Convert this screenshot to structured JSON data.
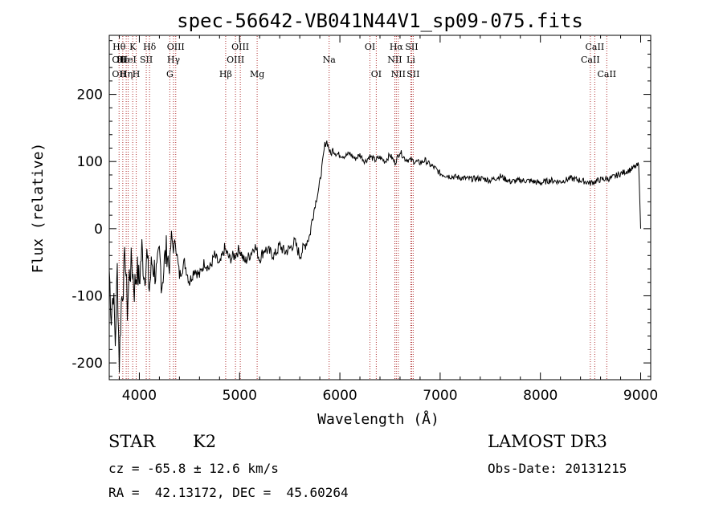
{
  "chart_data": {
    "type": "line",
    "title": "spec-56642-VB041N44V1_sp09-075.fits",
    "xlabel": "Wavelength (Å)",
    "ylabel": "Flux (relative)",
    "xlim": [
      3700,
      9100
    ],
    "ylim": [
      -225,
      288
    ],
    "xticks": [
      4000,
      5000,
      6000,
      7000,
      8000,
      9000
    ],
    "yticks": [
      -200,
      -100,
      0,
      100,
      200
    ],
    "grid": false,
    "series": [
      {
        "name": "spectrum",
        "x": [
          3700,
          3720,
          3740,
          3760,
          3780,
          3800,
          3820,
          3840,
          3860,
          3880,
          3900,
          3925,
          3950,
          3975,
          4000,
          4025,
          4050,
          4075,
          4100,
          4125,
          4150,
          4175,
          4200,
          4225,
          4250,
          4275,
          4300,
          4320,
          4340,
          4360,
          4400,
          4450,
          4500,
          4550,
          4600,
          4650,
          4700,
          4750,
          4800,
          4850,
          4900,
          4950,
          5000,
          5050,
          5100,
          5150,
          5200,
          5250,
          5300,
          5350,
          5400,
          5450,
          5500,
          5550,
          5600,
          5650,
          5700,
          5730,
          5760,
          5790,
          5820,
          5850,
          5870,
          5890,
          5910,
          5930,
          5960,
          6000,
          6050,
          6100,
          6150,
          6200,
          6250,
          6300,
          6350,
          6400,
          6450,
          6500,
          6550,
          6600,
          6650,
          6700,
          6750,
          6800,
          6850,
          6900,
          6950,
          7000,
          7100,
          7200,
          7300,
          7400,
          7500,
          7600,
          7700,
          7800,
          7900,
          8000,
          8100,
          8200,
          8300,
          8400,
          8500,
          8600,
          8700,
          8800,
          8900,
          8980,
          9000
        ],
        "values": [
          -60,
          -130,
          -90,
          -170,
          -60,
          -200,
          -110,
          -80,
          -40,
          -120,
          -70,
          -50,
          -90,
          -60,
          -80,
          -30,
          -70,
          -40,
          -90,
          -50,
          -60,
          -70,
          -40,
          -80,
          -50,
          -30,
          -60,
          -10,
          -30,
          -20,
          -70,
          -50,
          -80,
          -60,
          -70,
          -50,
          -60,
          -40,
          -55,
          -30,
          -45,
          -40,
          -30,
          -50,
          -40,
          -25,
          -45,
          -30,
          -35,
          -40,
          -25,
          -35,
          -30,
          -20,
          -40,
          -25,
          -10,
          20,
          40,
          60,
          90,
          125,
          130,
          120,
          110,
          118,
          112,
          110,
          108,
          112,
          104,
          110,
          100,
          108,
          102,
          106,
          100,
          110,
          98,
          115,
          104,
          102,
          100,
          98,
          102,
          95,
          90,
          82,
          78,
          76,
          74,
          75,
          72,
          78,
          70,
          72,
          71,
          68,
          72,
          70,
          75,
          72,
          68,
          73,
          75,
          82,
          88,
          95,
          0
        ]
      }
    ],
    "lines": [
      {
        "w": 3798,
        "labels": [
          {
            "t": "Hθ",
            "r": 0
          },
          {
            "t": "OII",
            "r": 1
          },
          {
            "t": "OII",
            "r": 2
          }
        ]
      },
      {
        "w": 3835,
        "labels": [
          {
            "t": "Hε",
            "r": 1
          }
        ]
      },
      {
        "w": 3869,
        "labels": [
          {
            "t": "Hη",
            "r": 2
          }
        ]
      },
      {
        "w": 3889,
        "labels": [
          {
            "t": "HeI",
            "r": 1
          }
        ]
      },
      {
        "w": 3934,
        "labels": [
          {
            "t": "K",
            "r": 0
          }
        ]
      },
      {
        "w": 3969,
        "labels": [
          {
            "t": "H",
            "r": 2
          }
        ]
      },
      {
        "w": 4069,
        "labels": [
          {
            "t": "SII",
            "r": 1
          }
        ]
      },
      {
        "w": 4102,
        "labels": [
          {
            "t": "Hδ",
            "r": 0
          }
        ]
      },
      {
        "w": 4304,
        "labels": [
          {
            "t": "G",
            "r": 2
          }
        ]
      },
      {
        "w": 4341,
        "labels": [
          {
            "t": "Hγ",
            "r": 1
          }
        ]
      },
      {
        "w": 4363,
        "labels": [
          {
            "t": "OIII",
            "r": 0
          }
        ]
      },
      {
        "w": 4861,
        "labels": [
          {
            "t": "Hβ",
            "r": 2
          }
        ]
      },
      {
        "w": 4959,
        "labels": [
          {
            "t": "OIII",
            "r": 1
          }
        ]
      },
      {
        "w": 5007,
        "labels": [
          {
            "t": "OIII",
            "r": 0
          }
        ]
      },
      {
        "w": 5175,
        "labels": [
          {
            "t": "Mg",
            "r": 2
          }
        ]
      },
      {
        "w": 5893,
        "labels": [
          {
            "t": "Na",
            "r": 1
          }
        ]
      },
      {
        "w": 6300,
        "labels": [
          {
            "t": "OI",
            "r": 0
          }
        ]
      },
      {
        "w": 6363,
        "labels": [
          {
            "t": "OI",
            "r": 2
          }
        ]
      },
      {
        "w": 6548,
        "labels": [
          {
            "t": "NII",
            "r": 1
          }
        ]
      },
      {
        "w": 6563,
        "labels": [
          {
            "t": "Hα",
            "r": 0
          }
        ]
      },
      {
        "w": 6583,
        "labels": [
          {
            "t": "NII",
            "r": 2
          }
        ]
      },
      {
        "w": 6708,
        "labels": [
          {
            "t": "Li",
            "r": 1
          }
        ]
      },
      {
        "w": 6716,
        "labels": [
          {
            "t": "SII",
            "r": 0
          }
        ]
      },
      {
        "w": 6731,
        "labels": [
          {
            "t": "SII",
            "r": 2
          }
        ]
      },
      {
        "w": 8498,
        "labels": [
          {
            "t": "CaII",
            "r": 1
          }
        ]
      },
      {
        "w": 8542,
        "labels": [
          {
            "t": "CaII",
            "r": 0
          }
        ]
      },
      {
        "w": 8662,
        "labels": [
          {
            "t": "CaII",
            "r": 2
          }
        ]
      }
    ]
  },
  "info": {
    "obj_class": "STAR",
    "subclass": "K2",
    "survey": "LAMOST DR3",
    "redshift_text": "cz = -65.8 ± 12.6 km/s",
    "obs_date_text": "Obs-Date: 20131215",
    "coords_text": "RA =  42.13172, DEC =  45.60264"
  },
  "colors": {
    "line_marker": "#b03030",
    "spectrum": "#000000"
  }
}
